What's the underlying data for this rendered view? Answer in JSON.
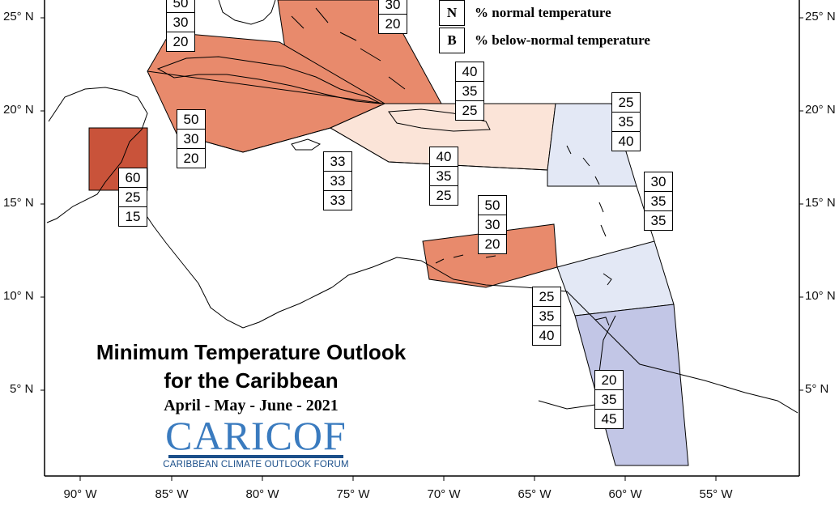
{
  "colors": {
    "above_60": "#c9533a",
    "above_50": "#e88a6c",
    "above_40": "#fbe4d8",
    "below_40": "#e3e8f5",
    "below_45": "#c2c6e6",
    "logo_blue": "#3a7bbf",
    "logo_dark": "#1b4f8a"
  },
  "legend": {
    "n_key": "N",
    "n_label": "% normal temperature",
    "b_key": "B",
    "b_label": "% below-normal temperature"
  },
  "title": {
    "line1": "Minimum Temperature Outlook",
    "line2": "for the Caribbean",
    "period": "April - May - June - 2021"
  },
  "logo": {
    "main": "CARICOF",
    "sub": "CARIBBEAN CLIMATE OUTLOOK FORUM"
  },
  "lat_labels": [
    "25° N",
    "20° N",
    "15° N",
    "10° N",
    "5° N"
  ],
  "lon_labels": [
    "90° W",
    "85° W",
    "80° W",
    "75° W",
    "70° W",
    "65° W",
    "60° W",
    "55° W"
  ],
  "probability_boxes": {
    "bahamas_west": [
      "50",
      "30",
      "20"
    ],
    "bahamas_east": [
      "30",
      "20"
    ],
    "cuba": [
      "50",
      "30",
      "20"
    ],
    "belize": [
      "60",
      "25",
      "15"
    ],
    "jamaica": [
      "33",
      "33",
      "33"
    ],
    "hispaniola": [
      "40",
      "35",
      "25"
    ],
    "puerto_rico": [
      "40",
      "35",
      "25"
    ],
    "leeward_islands": [
      "25",
      "35",
      "40"
    ],
    "windward_islands": [
      "30",
      "35",
      "35"
    ],
    "abc_islands": [
      "50",
      "30",
      "20"
    ],
    "trinidad": [
      "25",
      "35",
      "40"
    ],
    "guianas": [
      "20",
      "35",
      "45"
    ]
  }
}
